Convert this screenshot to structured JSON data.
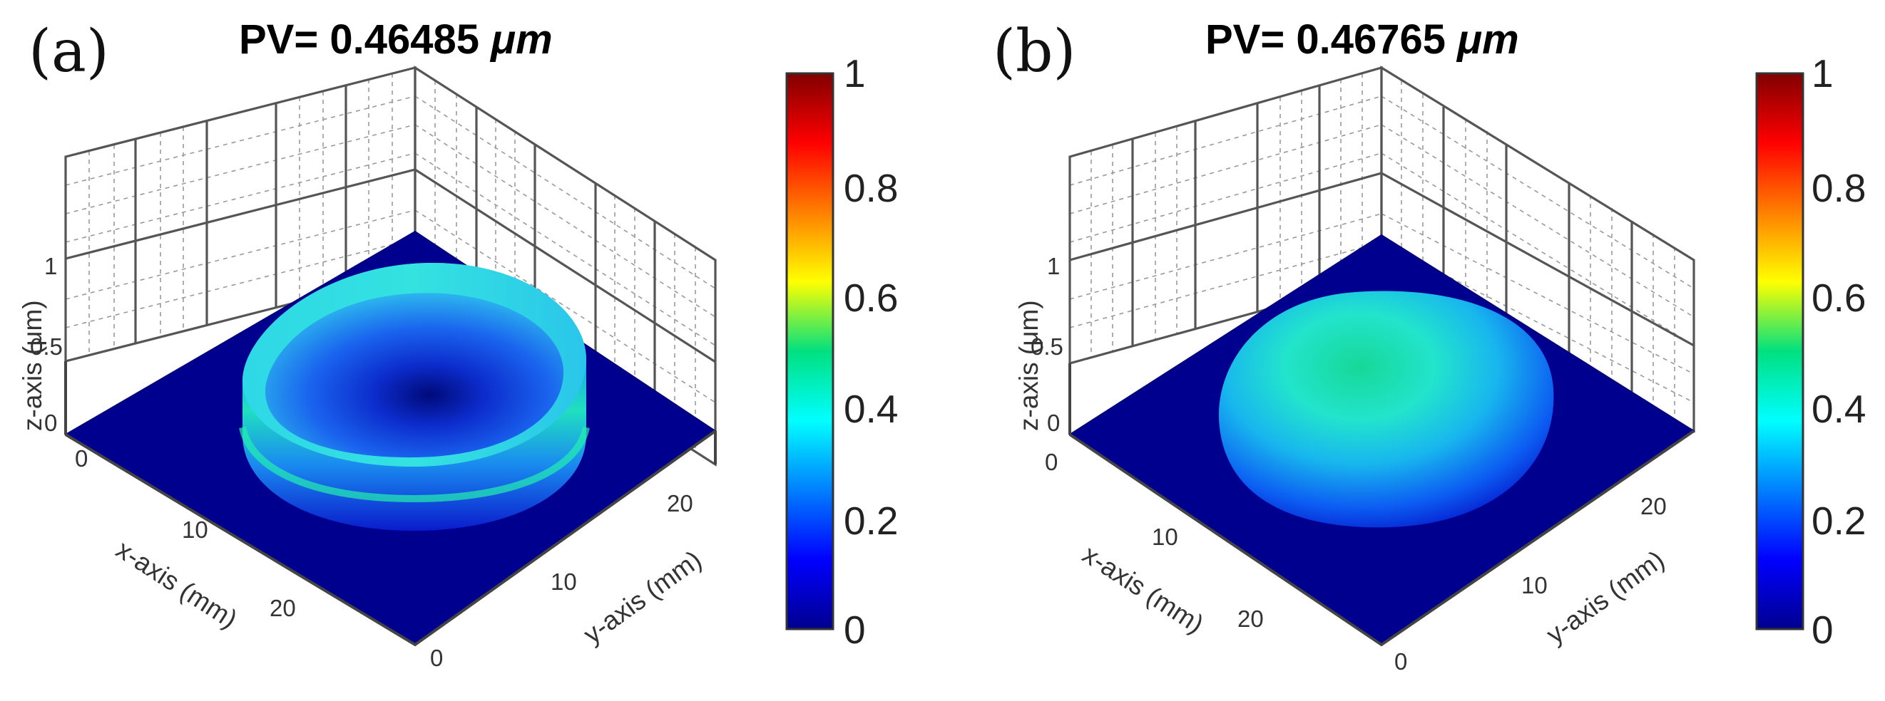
{
  "chart_data": [
    {
      "type": "surface3d",
      "panel_label": "(a)",
      "title_prefix": "PV= 0.46485 ",
      "title_unit": "μm",
      "xlabel": "x-axis (mm)",
      "ylabel": "y-axis (mm)",
      "zlabel": "z-axis (μm)",
      "xticks": [
        "0",
        "10",
        "20"
      ],
      "yticks": [
        "10",
        "20"
      ],
      "zticks": [
        "0",
        "0.5",
        "1"
      ],
      "extra_tick": "0",
      "xlim": [
        0,
        30
      ],
      "ylim": [
        0,
        30
      ],
      "zlim": [
        0,
        1
      ],
      "shape": "ring",
      "pv_um": 0.46485,
      "colorbar": {
        "ticks": [
          "0",
          "0.2",
          "0.4",
          "0.6",
          "0.8",
          "1"
        ],
        "range": [
          0,
          1
        ],
        "colormap": "jet"
      }
    },
    {
      "type": "surface3d",
      "panel_label": "(b)",
      "title_prefix": "PV= 0.46765 ",
      "title_unit": "μm",
      "xlabel": "x-axis (mm)",
      "ylabel": "y-axis (mm)",
      "zlabel": "z-axis (μm)",
      "xticks": [
        "0",
        "10",
        "20"
      ],
      "yticks": [
        "10",
        "20"
      ],
      "zticks": [
        "0",
        "0.5",
        "1"
      ],
      "extra_tick": "0",
      "xlim": [
        0,
        30
      ],
      "ylim": [
        0,
        30
      ],
      "zlim": [
        0,
        1
      ],
      "shape": "dome",
      "pv_um": 0.46765,
      "colorbar": {
        "ticks": [
          "0",
          "0.2",
          "0.4",
          "0.6",
          "0.8",
          "1"
        ],
        "range": [
          0,
          1
        ],
        "colormap": "jet"
      }
    }
  ],
  "colors": {
    "floor": "#00008f",
    "background": "#ffffff"
  }
}
